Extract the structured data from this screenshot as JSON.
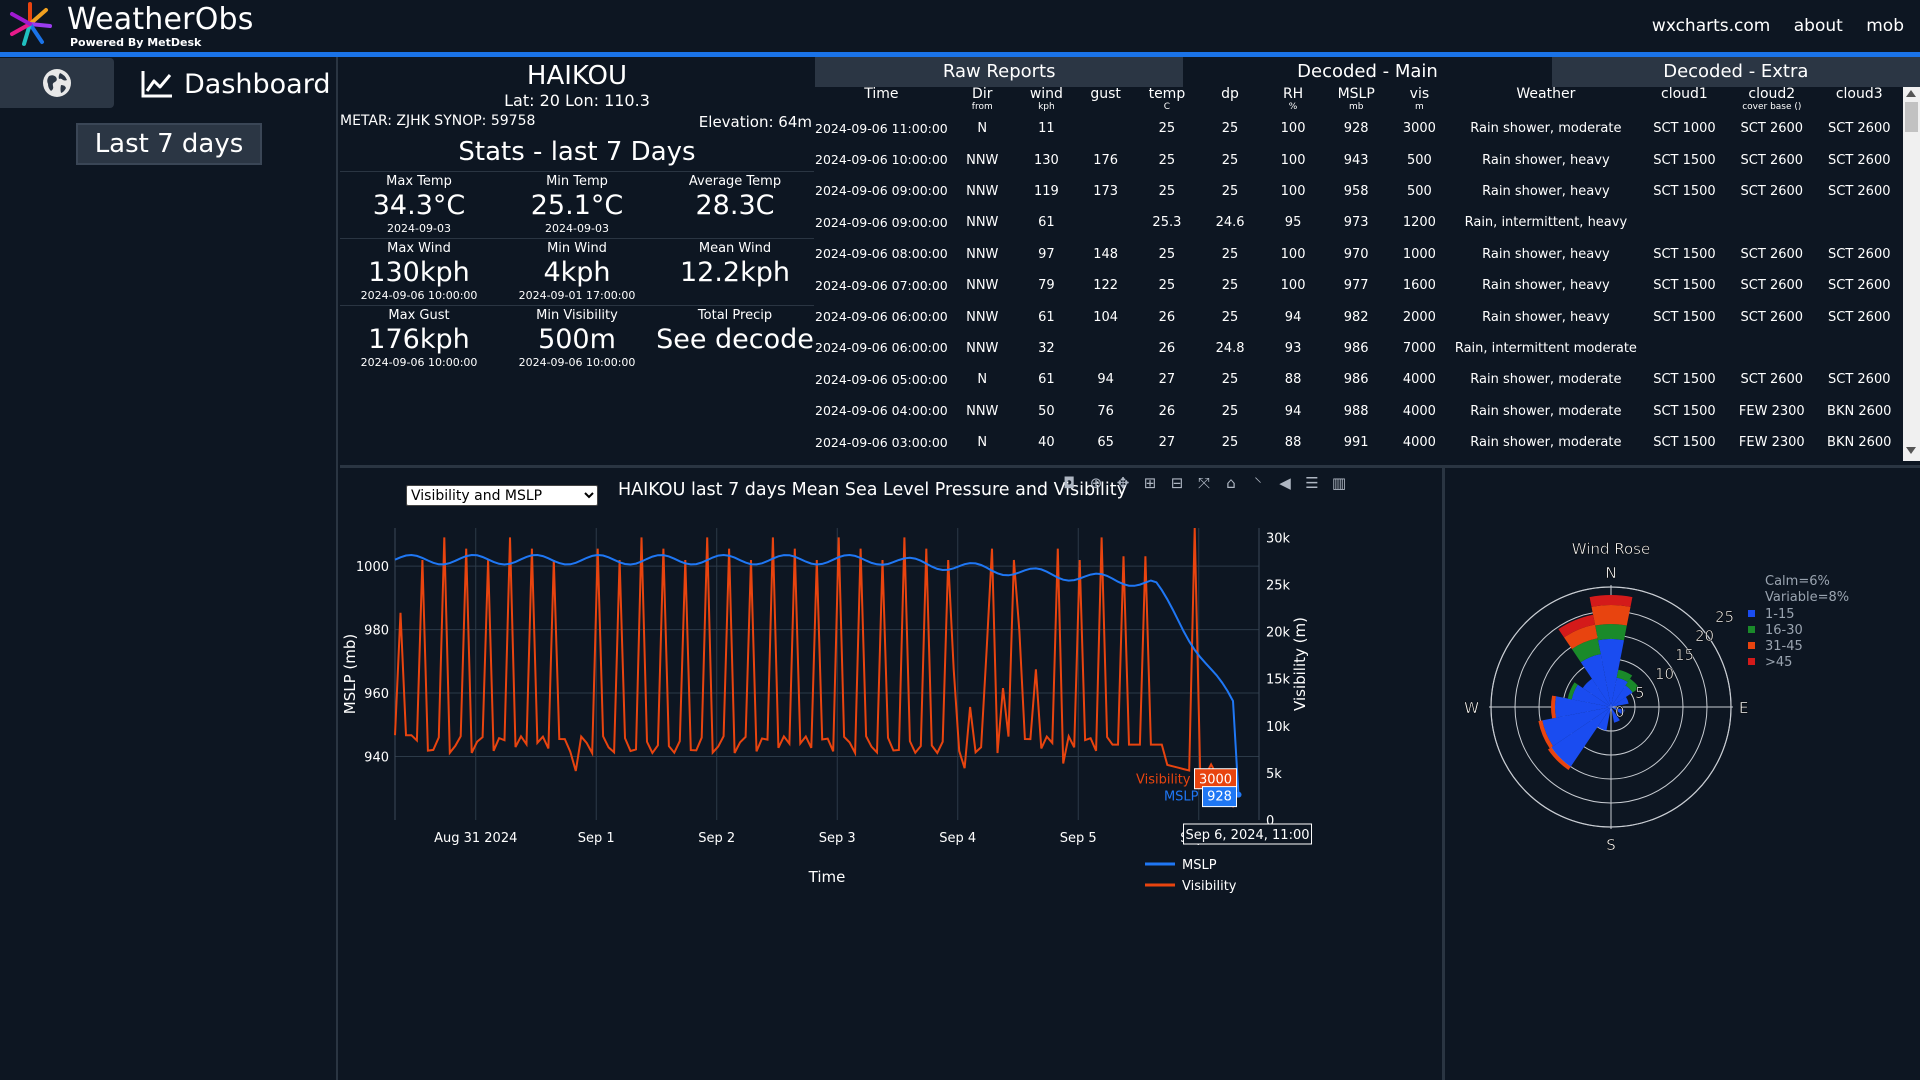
{
  "brand": {
    "name": "WeatherObs",
    "sub": "Powered By MetDesk"
  },
  "nav": [
    "wxcharts.com",
    "about",
    "mob"
  ],
  "sidebar": {
    "dashboard_label": "Dashboard",
    "range_label": "Last 7 days"
  },
  "station": {
    "name": "HAIKOU",
    "latlon": "Lat: 20 Lon: 110.3",
    "ids": "METAR: ZJHK SYNOP: 59758",
    "elevation": "Elevation: 64m",
    "stats_title": "Stats - last 7 Days",
    "stats": [
      [
        {
          "label": "Max Temp",
          "value": "34.3°C",
          "sub": "2024-09-03"
        },
        {
          "label": "Min Temp",
          "value": "25.1°C",
          "sub": "2024-09-03"
        },
        {
          "label": "Average Temp",
          "value": "28.3C",
          "sub": ""
        }
      ],
      [
        {
          "label": "Max Wind",
          "value": "130kph",
          "sub": "2024-09-06 10:00:00"
        },
        {
          "label": "Min Wind",
          "value": "4kph",
          "sub": "2024-09-01 17:00:00"
        },
        {
          "label": "Mean Wind",
          "value": "12.2kph",
          "sub": ""
        }
      ],
      [
        {
          "label": "Max Gust",
          "value": "176kph",
          "sub": "2024-09-06 10:00:00"
        },
        {
          "label": "Min Visibility",
          "value": "500m",
          "sub": "2024-09-06 10:00:00"
        },
        {
          "label": "Total Precip",
          "value": "See decode",
          "sub": ""
        }
      ]
    ]
  },
  "tabs": [
    {
      "label": "Raw Reports",
      "active": false
    },
    {
      "label": "Decoded - Main",
      "active": true
    },
    {
      "label": "Decoded - Extra",
      "active": false
    }
  ],
  "table": {
    "columns": [
      {
        "label": "Time",
        "unit": ""
      },
      {
        "label": "Dir",
        "unit": "from"
      },
      {
        "label": "wind",
        "unit": "kph"
      },
      {
        "label": "gust",
        "unit": ""
      },
      {
        "label": "temp",
        "unit": "C"
      },
      {
        "label": "dp",
        "unit": ""
      },
      {
        "label": "RH",
        "unit": "%"
      },
      {
        "label": "MSLP",
        "unit": "mb"
      },
      {
        "label": "vis",
        "unit": "m"
      },
      {
        "label": "Weather",
        "unit": ""
      },
      {
        "label": "cloud1",
        "unit": ""
      },
      {
        "label": "cloud2",
        "unit": "cover base ()"
      },
      {
        "label": "cloud3",
        "unit": ""
      }
    ],
    "rows": [
      [
        "2024-09-06 11:00:00",
        "N",
        "11",
        "",
        "25",
        "25",
        "100",
        "928",
        "3000",
        "Rain shower, moderate",
        "SCT 1000",
        "SCT 2600",
        "SCT 2600"
      ],
      [
        "2024-09-06 10:00:00",
        "NNW",
        "130",
        "176",
        "25",
        "25",
        "100",
        "943",
        "500",
        "Rain shower, heavy",
        "SCT 1500",
        "SCT 2600",
        "SCT 2600"
      ],
      [
        "2024-09-06 09:00:00",
        "NNW",
        "119",
        "173",
        "25",
        "25",
        "100",
        "958",
        "500",
        "Rain shower, heavy",
        "SCT 1500",
        "SCT 2600",
        "SCT 2600"
      ],
      [
        "2024-09-06 09:00:00",
        "NNW",
        "61",
        "",
        "25.3",
        "24.6",
        "95",
        "973",
        "1200",
        "Rain, intermittent, heavy",
        "",
        "",
        ""
      ],
      [
        "2024-09-06 08:00:00",
        "NNW",
        "97",
        "148",
        "25",
        "25",
        "100",
        "970",
        "1000",
        "Rain shower, heavy",
        "SCT 1500",
        "SCT 2600",
        "SCT 2600"
      ],
      [
        "2024-09-06 07:00:00",
        "NNW",
        "79",
        "122",
        "25",
        "25",
        "100",
        "977",
        "1600",
        "Rain shower, heavy",
        "SCT 1500",
        "SCT 2600",
        "SCT 2600"
      ],
      [
        "2024-09-06 06:00:00",
        "NNW",
        "61",
        "104",
        "26",
        "25",
        "94",
        "982",
        "2000",
        "Rain shower, heavy",
        "SCT 1500",
        "SCT 2600",
        "SCT 2600"
      ],
      [
        "2024-09-06 06:00:00",
        "NNW",
        "32",
        "",
        "26",
        "24.8",
        "93",
        "986",
        "7000",
        "Rain, intermittent moderate",
        "",
        "",
        ""
      ],
      [
        "2024-09-06 05:00:00",
        "N",
        "61",
        "94",
        "27",
        "25",
        "88",
        "986",
        "4000",
        "Rain shower, moderate",
        "SCT 1500",
        "SCT 2600",
        "SCT 2600"
      ],
      [
        "2024-09-06 04:00:00",
        "NNW",
        "50",
        "76",
        "26",
        "25",
        "94",
        "988",
        "4000",
        "Rain shower, moderate",
        "SCT 1500",
        "FEW 2300",
        "BKN 2600"
      ],
      [
        "2024-09-06 03:00:00",
        "N",
        "40",
        "65",
        "27",
        "25",
        "88",
        "991",
        "4000",
        "Rain shower, moderate",
        "SCT 1500",
        "FEW 2300",
        "BKN 2600"
      ]
    ]
  },
  "chart_select": {
    "value": "Visibility and MSLP"
  },
  "chart_data": [
    {
      "type": "line",
      "title": "HAIKOU last 7 days Mean Sea Level Pressure and Visibility",
      "xlabel": "Time",
      "ylabel_left": "MSLP (mb)",
      "ylabel_right": "Visibility (m)",
      "x_ticks": [
        "Aug 31 2024",
        "Sep 1",
        "Sep 2",
        "Sep 3",
        "Sep 4",
        "Sep 5",
        "Sep 6"
      ],
      "ylim_left": [
        920,
        1012
      ],
      "yticks_left": [
        "1000",
        "980",
        "960",
        "940"
      ],
      "ylim_right": [
        0,
        31000
      ],
      "yticks_right": [
        "30k",
        "25k",
        "20k",
        "15k",
        "10k",
        "5k",
        "0"
      ],
      "series": [
        {
          "name": "MSLP",
          "color": "#1f77f4",
          "axis": "left"
        },
        {
          "name": "Visibility",
          "color": "#e8440f",
          "axis": "right"
        }
      ],
      "hover": {
        "time": "Sep 6, 2024, 11:00",
        "Visibility": "3000",
        "MSLP": "928"
      },
      "grid": true,
      "legend": "bottom-right"
    },
    {
      "type": "polar-bar",
      "title": "Wind Rose",
      "directions": [
        "N",
        "E",
        "S",
        "W"
      ],
      "radial_ticks": [
        "0",
        "5",
        "10",
        "15",
        "20",
        "25"
      ],
      "calm": "Calm=6%",
      "variable": "Variable=8%",
      "legend": [
        {
          "name": "1-15",
          "color": "#1a4cf0"
        },
        {
          "name": "16-30",
          "color": "#1a8a2a"
        },
        {
          "name": "31-45",
          "color": "#e8440f"
        },
        {
          "name": ">45",
          "color": "#d41a1a"
        }
      ]
    }
  ]
}
